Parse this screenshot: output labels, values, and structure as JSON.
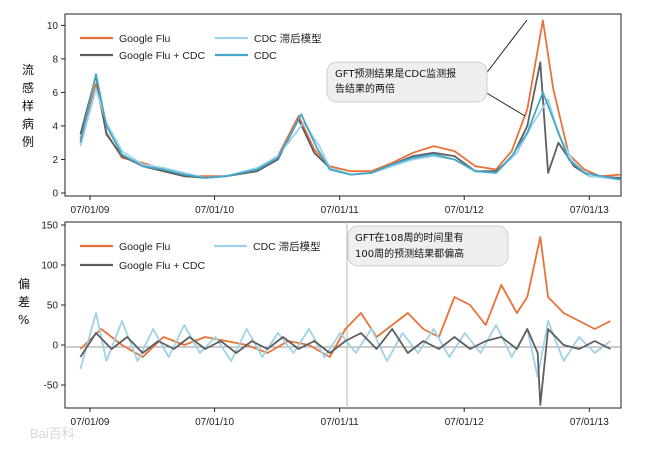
{
  "colors": {
    "google_flu": "#e8733a",
    "google_flu_cdc": "#5f5f5f",
    "cdc_lag": "#9fd3e8",
    "cdc": "#45a7c8",
    "axis": "#222222",
    "note_bg": "#efefef"
  },
  "watermark": "Bai百科",
  "chart_data": [
    {
      "type": "line",
      "ylabel": "流感样病例%",
      "ylim": [
        0,
        10.5
      ],
      "yticks": [
        "10",
        "8",
        "6",
        "4",
        "2",
        "0"
      ],
      "x_ticks": [
        "07/01/09",
        "07/01/10",
        "07/01/11",
        "07/01/12",
        "07/01/13"
      ],
      "legend": [
        "Google Flu",
        "Google Flu + CDC",
        "CDC 滞后模型",
        "CDC"
      ],
      "annotation": "GFT预测结果是CDC监测报告结果的两倍",
      "series": [
        {
          "name": "Google Flu",
          "color_key": "google_flu",
          "values": [
            [
              0.02,
              3.2
            ],
            [
              0.05,
              6.5
            ],
            [
              0.07,
              3.6
            ],
            [
              0.1,
              2.1
            ],
            [
              0.14,
              1.8
            ],
            [
              0.18,
              1.4
            ],
            [
              0.22,
              1.0
            ],
            [
              0.26,
              1.0
            ],
            [
              0.3,
              1.0
            ],
            [
              0.36,
              1.4
            ],
            [
              0.4,
              2.2
            ],
            [
              0.44,
              4.6
            ],
            [
              0.47,
              2.6
            ],
            [
              0.5,
              1.6
            ],
            [
              0.54,
              1.3
            ],
            [
              0.58,
              1.3
            ],
            [
              0.62,
              1.8
            ],
            [
              0.66,
              2.4
            ],
            [
              0.7,
              2.8
            ],
            [
              0.74,
              2.5
            ],
            [
              0.78,
              1.6
            ],
            [
              0.82,
              1.4
            ],
            [
              0.85,
              2.5
            ],
            [
              0.88,
              5.0
            ],
            [
              0.91,
              10.3
            ],
            [
              0.93,
              6.2
            ],
            [
              0.96,
              2.3
            ],
            [
              0.99,
              1.4
            ],
            [
              1.02,
              1.0
            ],
            [
              1.06,
              1.1
            ]
          ]
        },
        {
          "name": "Google Flu + CDC",
          "color_key": "google_flu_cdc",
          "values": [
            [
              0.02,
              3.5
            ],
            [
              0.05,
              7.0
            ],
            [
              0.07,
              3.5
            ],
            [
              0.1,
              2.2
            ],
            [
              0.14,
              1.6
            ],
            [
              0.18,
              1.3
            ],
            [
              0.22,
              1.0
            ],
            [
              0.26,
              0.9
            ],
            [
              0.3,
              1.0
            ],
            [
              0.36,
              1.3
            ],
            [
              0.4,
              2.0
            ],
            [
              0.44,
              4.4
            ],
            [
              0.47,
              2.4
            ],
            [
              0.5,
              1.5
            ],
            [
              0.54,
              1.1
            ],
            [
              0.58,
              1.2
            ],
            [
              0.62,
              1.7
            ],
            [
              0.66,
              2.2
            ],
            [
              0.7,
              2.4
            ],
            [
              0.74,
              2.2
            ],
            [
              0.78,
              1.3
            ],
            [
              0.82,
              1.3
            ],
            [
              0.85,
              2.1
            ],
            [
              0.88,
              4.0
            ],
            [
              0.905,
              7.8
            ],
            [
              0.92,
              1.2
            ],
            [
              0.94,
              3.0
            ],
            [
              0.97,
              1.6
            ],
            [
              1.0,
              1.0
            ],
            [
              1.06,
              0.9
            ]
          ]
        },
        {
          "name": "CDC 滞后模型",
          "color_key": "cdc_lag",
          "values": [
            [
              0.02,
              2.8
            ],
            [
              0.05,
              6.2
            ],
            [
              0.07,
              4.2
            ],
            [
              0.1,
              2.5
            ],
            [
              0.14,
              1.7
            ],
            [
              0.18,
              1.5
            ],
            [
              0.22,
              1.2
            ],
            [
              0.26,
              0.9
            ],
            [
              0.3,
              1.0
            ],
            [
              0.36,
              1.5
            ],
            [
              0.4,
              2.2
            ],
            [
              0.45,
              4.2
            ],
            [
              0.48,
              2.8
            ],
            [
              0.5,
              1.5
            ],
            [
              0.54,
              1.1
            ],
            [
              0.58,
              1.2
            ],
            [
              0.62,
              1.6
            ],
            [
              0.66,
              2.0
            ],
            [
              0.7,
              2.2
            ],
            [
              0.74,
              2.0
            ],
            [
              0.78,
              1.3
            ],
            [
              0.82,
              1.2
            ],
            [
              0.86,
              2.4
            ],
            [
              0.89,
              4.1
            ],
            [
              0.92,
              5.6
            ],
            [
              0.94,
              3.5
            ],
            [
              0.97,
              1.8
            ],
            [
              1.0,
              1.0
            ],
            [
              1.06,
              0.8
            ]
          ]
        },
        {
          "name": "CDC",
          "color_key": "cdc",
          "values": [
            [
              0.02,
              3.0
            ],
            [
              0.05,
              7.1
            ],
            [
              0.07,
              4.0
            ],
            [
              0.1,
              2.3
            ],
            [
              0.14,
              1.6
            ],
            [
              0.18,
              1.4
            ],
            [
              0.22,
              1.1
            ],
            [
              0.26,
              0.9
            ],
            [
              0.3,
              1.0
            ],
            [
              0.36,
              1.4
            ],
            [
              0.4,
              2.1
            ],
            [
              0.445,
              4.7
            ],
            [
              0.475,
              2.7
            ],
            [
              0.5,
              1.4
            ],
            [
              0.54,
              1.1
            ],
            [
              0.58,
              1.2
            ],
            [
              0.62,
              1.7
            ],
            [
              0.66,
              2.1
            ],
            [
              0.7,
              2.3
            ],
            [
              0.74,
              2.0
            ],
            [
              0.78,
              1.3
            ],
            [
              0.82,
              1.2
            ],
            [
              0.85,
              2.2
            ],
            [
              0.88,
              3.6
            ],
            [
              0.91,
              6.0
            ],
            [
              0.93,
              4.4
            ],
            [
              0.96,
              2.0
            ],
            [
              0.99,
              1.2
            ],
            [
              1.06,
              0.8
            ]
          ]
        }
      ]
    },
    {
      "type": "line",
      "ylabel": "偏差%",
      "ylim": [
        -75,
        150
      ],
      "yticks": [
        "150",
        "100",
        "50",
        "0",
        "-50"
      ],
      "x_ticks": [
        "07/01/09",
        "07/01/10",
        "07/01/11",
        "07/01/12",
        "07/01/13"
      ],
      "legend": [
        "Google Flu",
        "CDC 滞后模型",
        "Google Flu + CDC"
      ],
      "annotation": "GFT在108周的时间里有100周的预测结果都偏高",
      "series": [
        {
          "name": "Google Flu",
          "color_key": "google_flu",
          "values": [
            [
              0.02,
              -5
            ],
            [
              0.06,
              20
            ],
            [
              0.1,
              0
            ],
            [
              0.14,
              -15
            ],
            [
              0.18,
              10
            ],
            [
              0.22,
              0
            ],
            [
              0.26,
              10
            ],
            [
              0.3,
              5
            ],
            [
              0.34,
              0
            ],
            [
              0.38,
              -10
            ],
            [
              0.42,
              5
            ],
            [
              0.46,
              0
            ],
            [
              0.5,
              -15
            ],
            [
              0.53,
              20
            ],
            [
              0.56,
              40
            ],
            [
              0.59,
              10
            ],
            [
              0.62,
              25
            ],
            [
              0.65,
              40
            ],
            [
              0.68,
              20
            ],
            [
              0.71,
              10
            ],
            [
              0.74,
              60
            ],
            [
              0.77,
              50
            ],
            [
              0.8,
              25
            ],
            [
              0.83,
              75
            ],
            [
              0.86,
              40
            ],
            [
              0.88,
              60
            ],
            [
              0.905,
              135
            ],
            [
              0.92,
              60
            ],
            [
              0.95,
              40
            ],
            [
              0.98,
              30
            ],
            [
              1.01,
              20
            ],
            [
              1.04,
              30
            ]
          ]
        },
        {
          "name": "CDC 滞后模型",
          "color_key": "cdc_lag",
          "values": [
            [
              0.02,
              -30
            ],
            [
              0.05,
              40
            ],
            [
              0.07,
              -20
            ],
            [
              0.1,
              30
            ],
            [
              0.13,
              -20
            ],
            [
              0.16,
              20
            ],
            [
              0.19,
              -15
            ],
            [
              0.22,
              25
            ],
            [
              0.25,
              -10
            ],
            [
              0.28,
              10
            ],
            [
              0.31,
              -20
            ],
            [
              0.34,
              20
            ],
            [
              0.37,
              -15
            ],
            [
              0.4,
              15
            ],
            [
              0.43,
              -10
            ],
            [
              0.46,
              20
            ],
            [
              0.49,
              -15
            ],
            [
              0.52,
              15
            ],
            [
              0.55,
              -10
            ],
            [
              0.58,
              20
            ],
            [
              0.61,
              -20
            ],
            [
              0.64,
              15
            ],
            [
              0.67,
              -10
            ],
            [
              0.7,
              20
            ],
            [
              0.73,
              -15
            ],
            [
              0.76,
              15
            ],
            [
              0.79,
              -10
            ],
            [
              0.82,
              25
            ],
            [
              0.85,
              -15
            ],
            [
              0.88,
              20
            ],
            [
              0.9,
              -40
            ],
            [
              0.92,
              30
            ],
            [
              0.95,
              -20
            ],
            [
              0.98,
              10
            ],
            [
              1.01,
              -10
            ],
            [
              1.04,
              5
            ]
          ]
        },
        {
          "name": "Google Flu + CDC",
          "color_key": "google_flu_cdc",
          "values": [
            [
              0.02,
              -15
            ],
            [
              0.05,
              15
            ],
            [
              0.08,
              -5
            ],
            [
              0.11,
              10
            ],
            [
              0.14,
              -10
            ],
            [
              0.17,
              5
            ],
            [
              0.2,
              -5
            ],
            [
              0.23,
              10
            ],
            [
              0.26,
              -5
            ],
            [
              0.29,
              5
            ],
            [
              0.32,
              -10
            ],
            [
              0.35,
              5
            ],
            [
              0.38,
              -5
            ],
            [
              0.41,
              10
            ],
            [
              0.44,
              -5
            ],
            [
              0.47,
              5
            ],
            [
              0.5,
              -10
            ],
            [
              0.53,
              5
            ],
            [
              0.56,
              15
            ],
            [
              0.59,
              -5
            ],
            [
              0.62,
              20
            ],
            [
              0.65,
              -10
            ],
            [
              0.68,
              5
            ],
            [
              0.71,
              -5
            ],
            [
              0.74,
              10
            ],
            [
              0.77,
              -5
            ],
            [
              0.8,
              5
            ],
            [
              0.83,
              10
            ],
            [
              0.86,
              -5
            ],
            [
              0.88,
              20
            ],
            [
              0.9,
              -10
            ],
            [
              0.905,
              -75
            ],
            [
              0.92,
              20
            ],
            [
              0.95,
              0
            ],
            [
              0.98,
              -5
            ],
            [
              1.01,
              5
            ],
            [
              1.04,
              -5
            ]
          ]
        }
      ]
    }
  ]
}
